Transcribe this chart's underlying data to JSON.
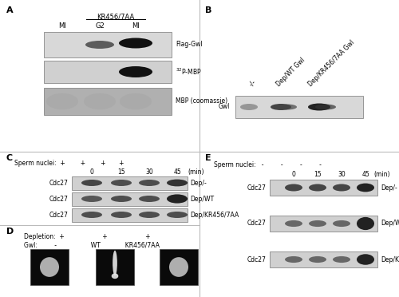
{
  "fig_width": 5.0,
  "fig_height": 3.72,
  "bg_color": "#ffffff",
  "divider_color": "#cccccc",
  "text_color": "#000000",
  "panel_A": {
    "label": "A",
    "header_text": "KR456/7AA",
    "col_labels": [
      "MI",
      "G2",
      "MI"
    ],
    "blot1_label": "Flag-Gwl",
    "blot2_label": "^{32}P-MBP",
    "blot3_label": "MBP (coomassie)"
  },
  "panel_B": {
    "label": "B",
    "row_label": "Gwl",
    "col_labels": [
      "-/-",
      "Dep/WT Gwl",
      "Dep/KR456/7AA Gwl"
    ]
  },
  "panel_C": {
    "label": "C",
    "sperm_row": "+ + + +",
    "time_labels": [
      "0",
      "15",
      "30",
      "45"
    ],
    "blot_labels": [
      "Cdc27",
      "Cdc27",
      "Cdc27"
    ],
    "condition_labels": [
      "Dep/-",
      "Dep/WT",
      "Dep/KR456/7AA"
    ]
  },
  "panel_D": {
    "label": "D",
    "depletion_label": "Depletion:",
    "gwl_label": "Gwl:",
    "col_labels": [
      "+\n-",
      "+\nWT",
      "+\nKR456/7AA"
    ]
  },
  "panel_E": {
    "label": "E",
    "sperm_row": "- - - -",
    "time_labels": [
      "0",
      "15",
      "30",
      "45"
    ],
    "blot_labels": [
      "Cdc27",
      "Cdc27",
      "Cdc27"
    ],
    "condition_labels": [
      "Dep/-",
      "Dep/WT",
      "Dep/KR456/7AA"
    ]
  }
}
